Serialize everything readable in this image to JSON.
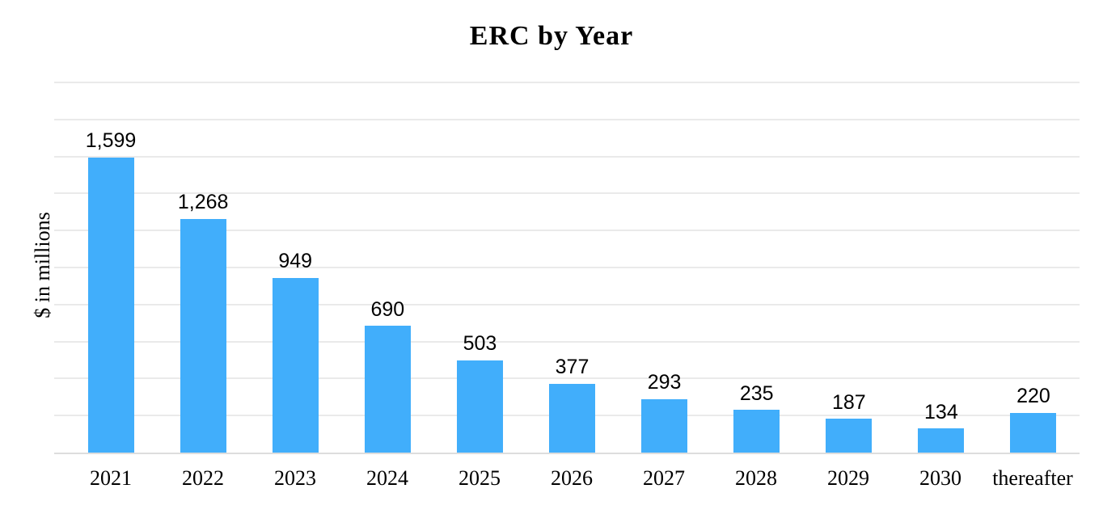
{
  "chart_data": {
    "type": "bar",
    "title": "ERC by Year",
    "xlabel": "",
    "ylabel": "$ in millions",
    "categories": [
      "2021",
      "2022",
      "2023",
      "2024",
      "2025",
      "2026",
      "2027",
      "2028",
      "2029",
      "2030",
      "thereafter"
    ],
    "values": [
      1599,
      1268,
      949,
      690,
      503,
      377,
      293,
      235,
      187,
      134,
      220
    ],
    "value_labels": [
      "1,599",
      "1,268",
      "949",
      "690",
      "503",
      "377",
      "293",
      "235",
      "187",
      "134",
      "220"
    ],
    "ylim": [
      0,
      2000
    ],
    "y_gridline_step": 200,
    "y_tick_labels_shown": false,
    "grid": "horizontal",
    "legend": "none",
    "colors": {
      "bar": "#41AEFB",
      "gridline": "#EAEAEA",
      "axis_line": "#DDDDDD",
      "text": "#000000",
      "background": "#FFFFFF"
    }
  }
}
